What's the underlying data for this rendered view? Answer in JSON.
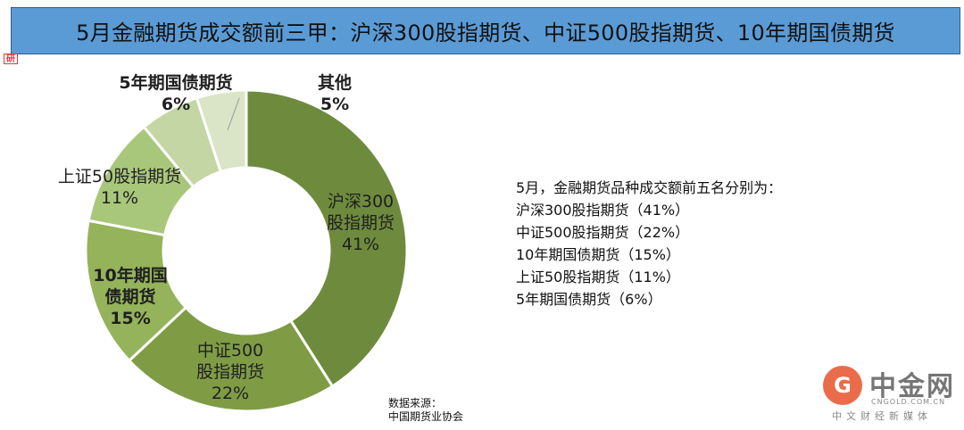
{
  "header": {
    "title": "5月金融期货成交额前三甲：沪深300股指期货、中证500股指期货、10年期国债期货",
    "logo_glyph": "研"
  },
  "chart_data": {
    "type": "pie",
    "donut": true,
    "title": "",
    "slices": [
      {
        "label_lines": [
          "沪深300",
          "股指期货"
        ],
        "value": 41,
        "value_label": "41%",
        "color": "#6e8b3d",
        "bold": false
      },
      {
        "label_lines": [
          "中证500",
          "股指期货"
        ],
        "value": 22,
        "value_label": "22%",
        "color": "#7f9c45",
        "bold": false
      },
      {
        "label_lines": [
          "10年期国",
          "债期货"
        ],
        "value": 15,
        "value_label": "15%",
        "color": "#94b35a",
        "bold": true
      },
      {
        "label_lines": [
          "上证50股指期货"
        ],
        "value": 11,
        "value_label": "11%",
        "color": "#a9c77a",
        "bold": false
      },
      {
        "label_lines": [
          "5年期国债期货"
        ],
        "value": 6,
        "value_label": "6%",
        "color": "#c3d6a4",
        "bold": true
      },
      {
        "label_lines": [
          "其他"
        ],
        "value": 5,
        "value_label": "5%",
        "color": "#d9e5c6",
        "bold": true
      }
    ]
  },
  "summary": {
    "heading": "5月，金融期货品种成交额前五名分别为：",
    "items": [
      "沪深300股指期货（41%）",
      "中证500股指期货（22%）",
      "10年期国债期货（15%）",
      "上证50股指期货（11%）",
      "5年期国债期货（6%）"
    ]
  },
  "source": {
    "label": "数据来源：",
    "org": "中国期货业协会"
  },
  "brand": {
    "mark": "G",
    "name": "中金网",
    "domain": "CNGOLD.COM.CN",
    "slogan": "中文财经新媒体"
  }
}
